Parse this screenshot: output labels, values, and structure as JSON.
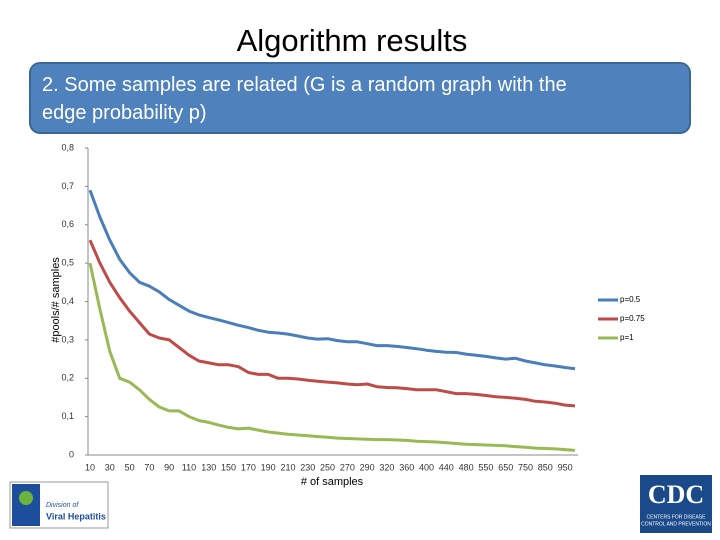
{
  "slide": {
    "title": "Algorithm results",
    "banner": "2. Some samples are related (G is a random graph with the edge probability p)"
  },
  "logos": {
    "left": [
      "Division of",
      "Viral Hepatitis"
    ],
    "right": [
      "CDC",
      "CENTERS FOR DISEASE",
      "CONTROL AND PREVENTION"
    ]
  },
  "chart_data": {
    "type": "line",
    "x_label": "# of samples",
    "y_label": "#pools/# samples",
    "categories": [
      "10",
      null,
      "30",
      null,
      "50",
      null,
      "70",
      null,
      "90",
      null,
      "110",
      null,
      "130",
      null,
      "150",
      null,
      "170",
      null,
      "190",
      null,
      "210",
      null,
      "230",
      null,
      "250",
      null,
      "270",
      null,
      "290",
      null,
      "320",
      null,
      "360",
      null,
      "400",
      null,
      "440",
      null,
      "480",
      null,
      "550",
      null,
      "650",
      null,
      "750",
      null,
      "850",
      null,
      "950",
      null
    ],
    "series": [
      {
        "name": "p=0.5",
        "color": "#4a7ebb",
        "values": [
          0.69,
          0.62,
          0.56,
          0.51,
          0.475,
          0.45,
          0.44,
          0.425,
          0.405,
          0.39,
          0.375,
          0.365,
          0.358,
          0.352,
          0.345,
          0.338,
          0.332,
          0.325,
          0.32,
          0.318,
          0.315,
          0.31,
          0.305,
          0.302,
          0.303,
          0.298,
          0.295,
          0.295,
          0.29,
          0.285,
          0.285,
          0.283,
          0.28,
          0.277,
          0.273,
          0.27,
          0.268,
          0.267,
          0.263,
          0.26,
          0.257,
          0.253,
          0.25,
          0.252,
          0.245,
          0.24,
          0.235,
          0.232,
          0.228,
          0.225
        ]
      },
      {
        "name": "p=0.75",
        "color": "#be4b48",
        "values": [
          0.56,
          0.5,
          0.45,
          0.41,
          0.375,
          0.345,
          0.315,
          0.305,
          0.3,
          0.28,
          0.26,
          0.245,
          0.24,
          0.235,
          0.235,
          0.23,
          0.215,
          0.21,
          0.21,
          0.2,
          0.2,
          0.198,
          0.195,
          0.192,
          0.19,
          0.188,
          0.185,
          0.183,
          0.185,
          0.178,
          0.176,
          0.175,
          0.173,
          0.17,
          0.17,
          0.17,
          0.165,
          0.16,
          0.16,
          0.158,
          0.155,
          0.152,
          0.15,
          0.148,
          0.145,
          0.14,
          0.138,
          0.135,
          0.13,
          0.128
        ]
      },
      {
        "name": "p=1",
        "color": "#98b954",
        "values": [
          0.5,
          0.38,
          0.27,
          0.2,
          0.19,
          0.17,
          0.145,
          0.125,
          0.115,
          0.115,
          0.1,
          0.09,
          0.085,
          0.078,
          0.072,
          0.068,
          0.07,
          0.065,
          0.06,
          0.057,
          0.054,
          0.052,
          0.05,
          0.048,
          0.046,
          0.044,
          0.043,
          0.042,
          0.041,
          0.04,
          0.04,
          0.039,
          0.038,
          0.036,
          0.035,
          0.034,
          0.032,
          0.03,
          0.028,
          0.027,
          0.026,
          0.025,
          0.024,
          0.022,
          0.02,
          0.018,
          0.017,
          0.016,
          0.014,
          0.012
        ]
      }
    ],
    "ylim": [
      0,
      0.8
    ],
    "yticks": [
      0,
      {
        "value": 0.1,
        "label": "0,1"
      },
      {
        "value": 0.2,
        "label": "0,2"
      },
      {
        "value": 0.3,
        "label": "0,3"
      },
      {
        "value": 0.4,
        "label": "0,4"
      },
      {
        "value": 0.5,
        "label": "0,5"
      },
      {
        "value": 0.6,
        "label": "0,6"
      },
      {
        "value": 0.7,
        "label": "0,7"
      },
      {
        "value": 0.8,
        "label": "0,8"
      }
    ],
    "grid": false,
    "legend": "right"
  }
}
